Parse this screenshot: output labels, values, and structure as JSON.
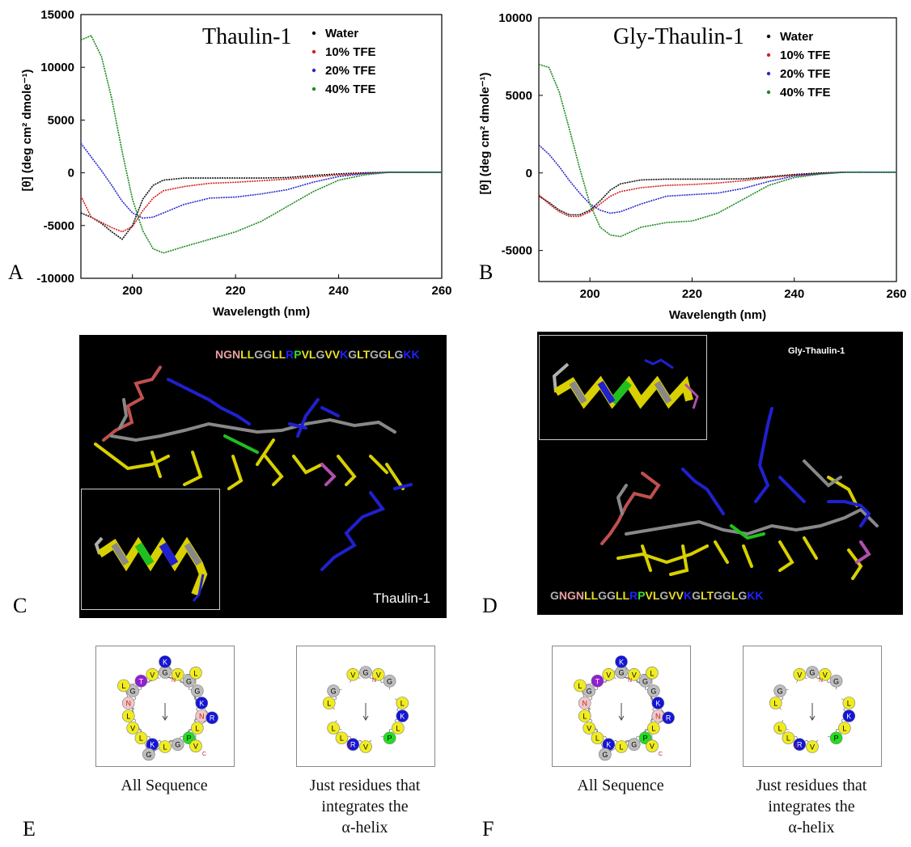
{
  "panels": {
    "a": "A",
    "b": "B",
    "c": "C",
    "d": "D",
    "e": "E",
    "f": "F"
  },
  "chart_data": [
    {
      "type": "line",
      "title": "Thaulin-1",
      "xlabel": "Wavelength (nm)",
      "ylabel": "[θ] (deg cm² dmole⁻¹)",
      "xlim": [
        190,
        260
      ],
      "ylim": [
        -10000,
        15000
      ],
      "x_ticks": [
        200,
        220,
        240,
        260
      ],
      "y_ticks": [
        -10000,
        -5000,
        0,
        5000,
        10000,
        15000
      ],
      "x_tick_labels": [
        "200",
        "220",
        "240",
        "260"
      ],
      "y_tick_labels": [
        "-10000",
        "-5000",
        "0",
        "5000",
        "10000",
        "15000"
      ],
      "legend_position": "top-right",
      "grid": false,
      "series": [
        {
          "name": "Water",
          "color": "#111111",
          "x": [
            190,
            192,
            194,
            196,
            198,
            200,
            202,
            204,
            206,
            210,
            215,
            220,
            225,
            230,
            235,
            240,
            245,
            250,
            255,
            260
          ],
          "y": [
            -3800,
            -4200,
            -4800,
            -5600,
            -6300,
            -5000,
            -2500,
            -1200,
            -700,
            -500,
            -500,
            -500,
            -500,
            -450,
            -250,
            -100,
            0,
            50,
            50,
            50
          ]
        },
        {
          "name": "10% TFE",
          "color": "#d42020",
          "x": [
            190,
            192,
            194,
            196,
            198,
            200,
            202,
            204,
            206,
            210,
            215,
            220,
            225,
            230,
            235,
            240,
            245,
            250,
            255,
            260
          ],
          "y": [
            -2200,
            -4200,
            -4700,
            -5200,
            -5600,
            -5100,
            -3600,
            -2400,
            -1700,
            -1300,
            -1000,
            -900,
            -750,
            -600,
            -400,
            -200,
            -50,
            50,
            50,
            50
          ]
        },
        {
          "name": "20% TFE",
          "color": "#2a2ad0",
          "x": [
            190,
            192,
            194,
            196,
            198,
            200,
            202,
            204,
            206,
            210,
            215,
            220,
            225,
            230,
            235,
            240,
            245,
            250,
            255,
            260
          ],
          "y": [
            2800,
            1500,
            200,
            -1200,
            -2700,
            -3800,
            -4300,
            -4200,
            -3800,
            -3000,
            -2400,
            -2300,
            -2000,
            -1600,
            -900,
            -350,
            -80,
            50,
            50,
            50
          ]
        },
        {
          "name": "40% TFE",
          "color": "#1a8a1a",
          "x": [
            190,
            192,
            194,
            196,
            198,
            200,
            202,
            204,
            206,
            210,
            215,
            220,
            225,
            230,
            235,
            240,
            245,
            250,
            255,
            260
          ],
          "y": [
            12600,
            13000,
            11000,
            7000,
            2000,
            -2500,
            -5500,
            -7200,
            -7600,
            -7000,
            -6300,
            -5600,
            -4600,
            -3200,
            -1800,
            -700,
            -200,
            50,
            50,
            50
          ]
        }
      ]
    },
    {
      "type": "line",
      "title": "Gly-Thaulin-1",
      "xlabel": "Wavelength (nm)",
      "ylabel": "[θ] (deg cm² dmole⁻¹)",
      "xlim": [
        190,
        260
      ],
      "ylim": [
        -7000,
        10000
      ],
      "x_ticks": [
        200,
        220,
        240,
        260
      ],
      "y_ticks": [
        -5000,
        0,
        5000,
        10000
      ],
      "x_tick_labels": [
        "200",
        "220",
        "240",
        "260"
      ],
      "y_tick_labels": [
        "-5000",
        "0",
        "5000",
        "10000"
      ],
      "legend_position": "top-right",
      "grid": false,
      "series": [
        {
          "name": "Water",
          "color": "#111111",
          "x": [
            190,
            192,
            194,
            196,
            198,
            200,
            202,
            204,
            206,
            210,
            215,
            220,
            225,
            230,
            235,
            240,
            245,
            250,
            255,
            260
          ],
          "y": [
            -1500,
            -1900,
            -2400,
            -2700,
            -2700,
            -2400,
            -1800,
            -1100,
            -700,
            -450,
            -400,
            -400,
            -400,
            -380,
            -250,
            -100,
            0,
            50,
            50,
            50
          ]
        },
        {
          "name": "10% TFE",
          "color": "#d42020",
          "x": [
            190,
            192,
            194,
            196,
            198,
            200,
            202,
            204,
            206,
            210,
            215,
            220,
            225,
            230,
            235,
            240,
            245,
            250,
            255,
            260
          ],
          "y": [
            -1400,
            -2000,
            -2500,
            -2800,
            -2800,
            -2500,
            -2000,
            -1500,
            -1200,
            -950,
            -800,
            -750,
            -650,
            -500,
            -300,
            -150,
            -30,
            50,
            50,
            50
          ]
        },
        {
          "name": "20% TFE",
          "color": "#2a2ad0",
          "x": [
            190,
            192,
            194,
            196,
            198,
            200,
            202,
            204,
            206,
            210,
            215,
            220,
            225,
            230,
            235,
            240,
            245,
            250,
            255,
            260
          ],
          "y": [
            1800,
            1200,
            400,
            -500,
            -1300,
            -2000,
            -2400,
            -2600,
            -2500,
            -2000,
            -1500,
            -1400,
            -1300,
            -1000,
            -550,
            -200,
            -50,
            50,
            50,
            50
          ]
        },
        {
          "name": "40% TFE",
          "color": "#1a8a1a",
          "x": [
            190,
            192,
            194,
            196,
            198,
            200,
            202,
            204,
            206,
            210,
            215,
            220,
            225,
            230,
            235,
            240,
            245,
            250,
            255,
            260
          ],
          "y": [
            7000,
            6800,
            5200,
            2800,
            300,
            -2000,
            -3500,
            -4000,
            -4100,
            -3500,
            -3200,
            -3100,
            -2600,
            -1700,
            -800,
            -300,
            -80,
            50,
            50,
            50
          ]
        }
      ]
    }
  ],
  "molecules": {
    "c": {
      "sequence": [
        {
          "t": "NGN",
          "c": "#e8a0a0"
        },
        {
          "t": "LL",
          "c": "#e8e020"
        },
        {
          "t": "GG",
          "c": "#b0b0b0"
        },
        {
          "t": "LL",
          "c": "#e8e020"
        },
        {
          "t": "R",
          "c": "#2020ff"
        },
        {
          "t": "P",
          "c": "#30e030"
        },
        {
          "t": "VL",
          "c": "#e8e020"
        },
        {
          "t": "G",
          "c": "#b0b0b0"
        },
        {
          "t": "VV",
          "c": "#e8e020"
        },
        {
          "t": "K",
          "c": "#2020ff"
        },
        {
          "t": "G",
          "c": "#b0b0b0"
        },
        {
          "t": "LT",
          "c": "#e8e020"
        },
        {
          "t": "GG",
          "c": "#b0b0b0"
        },
        {
          "t": "L",
          "c": "#e8e020"
        },
        {
          "t": "G",
          "c": "#b0b0b0"
        },
        {
          "t": "KK",
          "c": "#2020ff"
        }
      ],
      "label": "Thaulin-1"
    },
    "d": {
      "sequence": [
        {
          "t": "G",
          "c": "#b0b0b0"
        },
        {
          "t": "NGN",
          "c": "#e8a0a0"
        },
        {
          "t": "LL",
          "c": "#e8e020"
        },
        {
          "t": "GG",
          "c": "#b0b0b0"
        },
        {
          "t": "LL",
          "c": "#e8e020"
        },
        {
          "t": "R",
          "c": "#2020ff"
        },
        {
          "t": "P",
          "c": "#30e030"
        },
        {
          "t": "VL",
          "c": "#e8e020"
        },
        {
          "t": "G",
          "c": "#b0b0b0"
        },
        {
          "t": "VV",
          "c": "#e8e020"
        },
        {
          "t": "K",
          "c": "#2020ff"
        },
        {
          "t": "G",
          "c": "#b0b0b0"
        },
        {
          "t": "LT",
          "c": "#e8e020"
        },
        {
          "t": "GG",
          "c": "#b0b0b0"
        },
        {
          "t": "L",
          "c": "#e8e020"
        },
        {
          "t": "G",
          "c": "#b0b0b0"
        },
        {
          "t": "KK",
          "c": "#2020ff"
        }
      ],
      "label": "Gly-Thaulin-1"
    }
  },
  "wheels": {
    "all_caption": "All Sequence",
    "helix_caption_lines": [
      "Just residues that",
      "integrates the",
      "α-helix"
    ],
    "all_residues": [
      "G",
      "N",
      "K",
      "G",
      "G",
      "P",
      "V",
      "V",
      "K",
      "L",
      "N",
      "V",
      "L",
      "L",
      "T",
      "G",
      "G",
      "L",
      "K",
      "R",
      "G",
      "L",
      "L",
      "V"
    ],
    "helix_residues": [
      "G",
      "K",
      "R",
      "G",
      "G",
      "P",
      "L",
      "V",
      "L",
      "V",
      "L",
      "V",
      "L",
      "L"
    ],
    "n_terminal": "N",
    "c_terminal": "C"
  }
}
